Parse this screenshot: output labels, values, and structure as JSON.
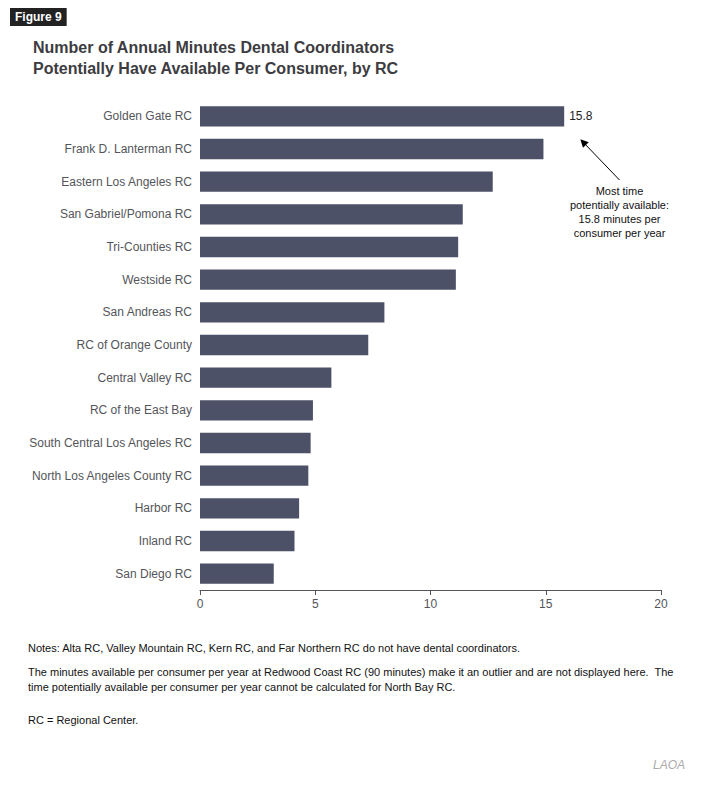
{
  "chart_data": {
    "type": "bar",
    "orientation": "horizontal",
    "figure_label": "Figure 9",
    "title": "Number of Annual Minutes Dental Coordinators\nPotentially Have Available Per Consumer, by RC",
    "categories": [
      "San Diego RC",
      "Inland RC",
      "Harbor RC",
      "North Los Angeles County RC",
      "South Central Los Angeles RC",
      "RC of the East Bay",
      "Central Valley RC",
      "RC of Orange County",
      "San Andreas RC",
      "Westside RC",
      "Tri-Counties RC",
      "San Gabriel/Pomona RC",
      "Eastern Los Angeles RC",
      "Frank D. Lanterman RC",
      "Golden Gate RC"
    ],
    "values": [
      3.2,
      4.1,
      4.3,
      4.7,
      4.8,
      4.9,
      5.7,
      7.3,
      8.0,
      11.1,
      11.2,
      11.4,
      12.7,
      14.9,
      15.8
    ],
    "value_labels": [
      null,
      null,
      null,
      null,
      null,
      null,
      null,
      null,
      null,
      null,
      null,
      null,
      null,
      null,
      "15.8"
    ],
    "color": "#4d5167",
    "xlim": [
      0,
      20
    ],
    "xticks": [
      0,
      5,
      10,
      15,
      20
    ],
    "grid": false,
    "annotations": [
      "Most time\npotentially available:\n15.8 minutes per\nconsumer per year"
    ],
    "notes": [
      "Notes: Alta RC, Valley Mountain RC, Kern RC, and Far Northern RC do not have dental coordinators.",
      "The minutes available per consumer per year at Redwood Coast RC (90 minutes) make it an outlier and are not displayed here.  The time potentially available per consumer per year cannot be calculated for North Bay RC.",
      "RC = Regional Center."
    ],
    "watermark": "LAOA"
  }
}
